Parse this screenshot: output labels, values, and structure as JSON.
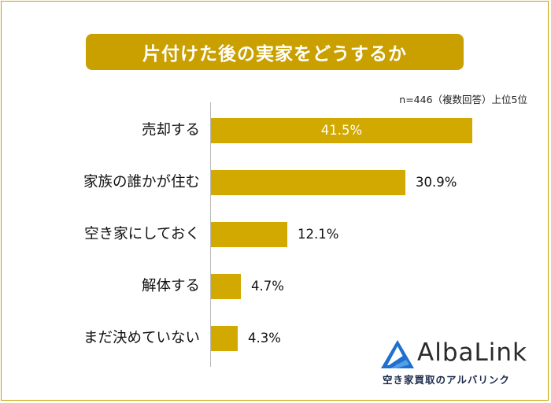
{
  "chart_data": {
    "type": "bar",
    "orientation": "horizontal",
    "title": "片付けた後の実家をどうするか",
    "note": "n=446（複数回答）上位5位",
    "categories": [
      "売却する",
      "家族の誰かが住む",
      "空き家にしておく",
      "解体する",
      "まだ決めていない"
    ],
    "values": [
      41.5,
      30.9,
      12.1,
      4.7,
      4.3
    ],
    "value_labels": [
      "41.5%",
      "30.9%",
      "12.1%",
      "4.7%",
      "4.3%"
    ],
    "xlim": [
      0,
      45
    ],
    "grid": false,
    "bar_color": "#d1a900"
  },
  "logo": {
    "name": "AlbaLink",
    "tagline": "空き家買取のアルバリンク"
  },
  "colors": {
    "title_bg": "#c9a000",
    "frame": "#c9a100",
    "logo_blue": "#1f6fd1"
  }
}
